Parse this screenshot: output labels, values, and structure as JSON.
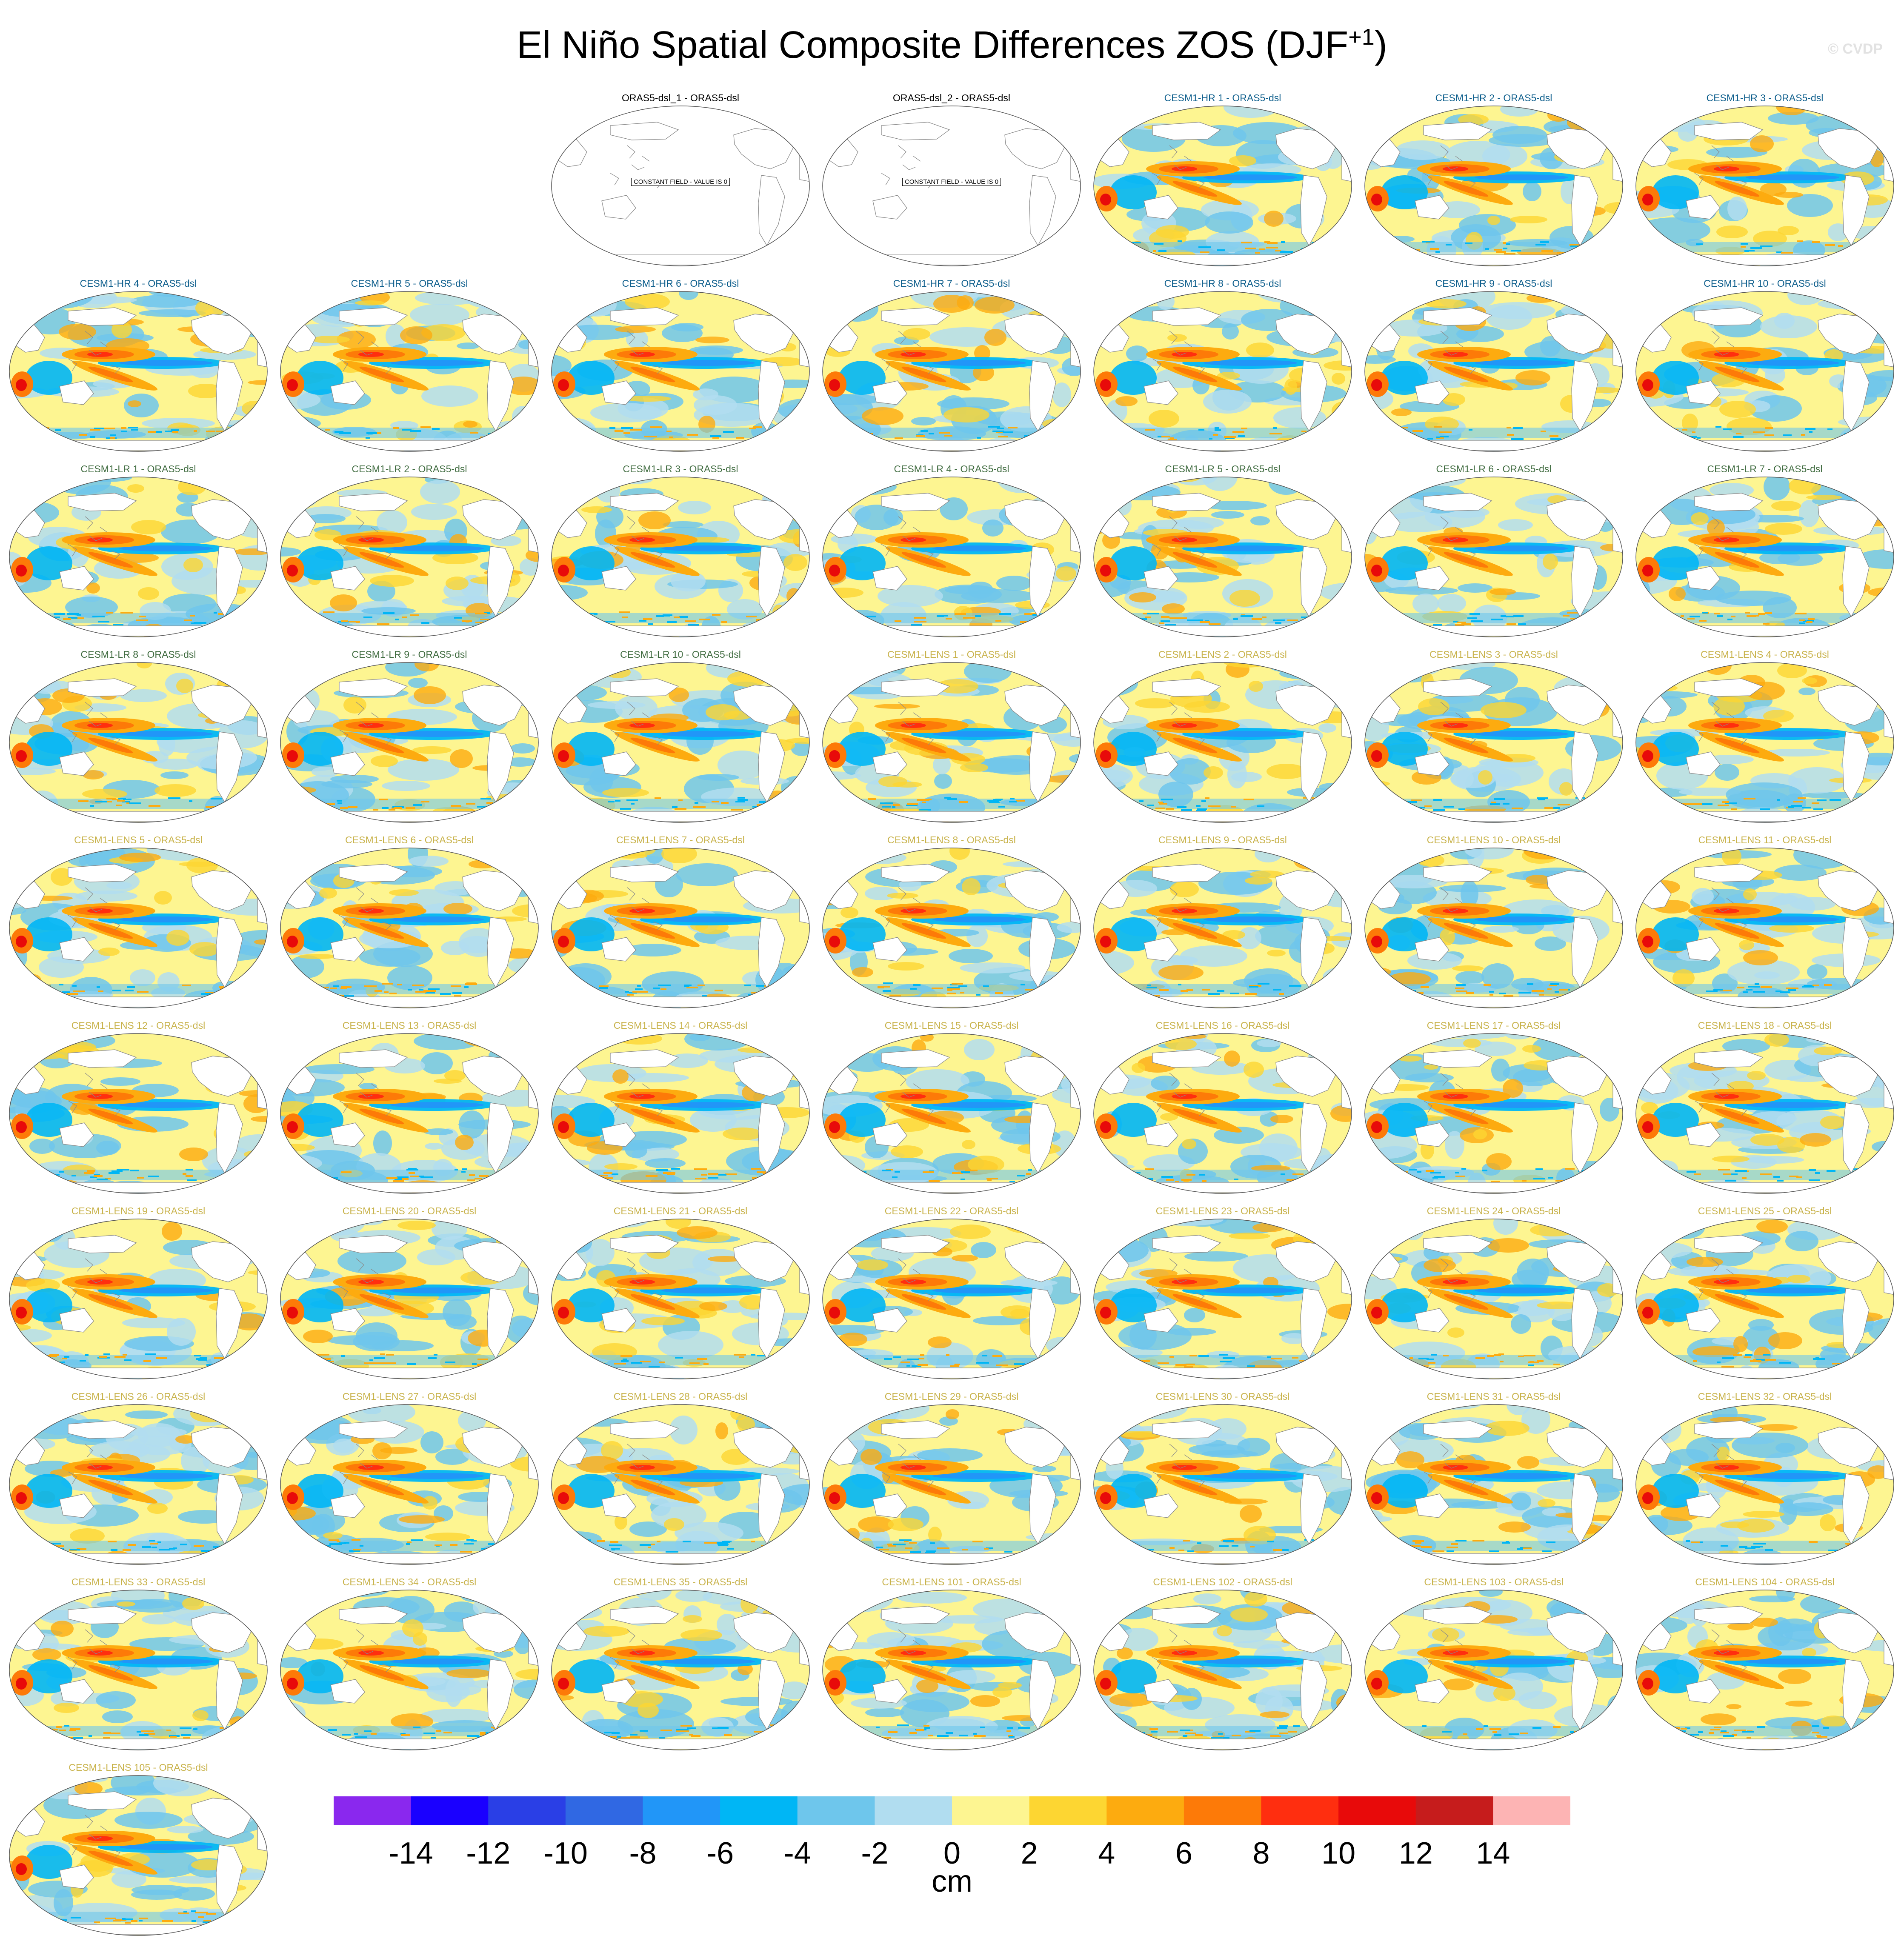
{
  "figure": {
    "title": "El Niño Spatial Composite Differences ZOS (DJF",
    "title_sup": "+1",
    "title_end": ")",
    "watermark": "© CVDP"
  },
  "colorbar": {
    "unit": "cm",
    "tick_labels": [
      "-14",
      "-12",
      "-10",
      "-8",
      "-6",
      "-4",
      "-2",
      "0",
      "2",
      "4",
      "6",
      "8",
      "10",
      "12",
      "14"
    ],
    "colors": [
      "#8a28ee",
      "#1a00ff",
      "#2a3fe6",
      "#3068e3",
      "#2196f8",
      "#00b6f5",
      "#6ec6ec",
      "#b1ddf0",
      "#fdf591",
      "#fdd632",
      "#fdab0f",
      "#fd7a08",
      "#ff2e0f",
      "#e80a0a",
      "#c61c1c",
      "#fdb4b4"
    ]
  },
  "panels": [
    {
      "title": "ORAS5-dsl_1 - ORAS5-dsl",
      "group": "obs",
      "note": "CONSTANT FIELD - VALUE IS 0"
    },
    {
      "title": "ORAS5-dsl_2 - ORAS5-dsl",
      "group": "obs",
      "note": "CONSTANT FIELD - VALUE IS 0"
    },
    {
      "title": "CESM1-HR 1 - ORAS5-dsl",
      "group": "hr"
    },
    {
      "title": "CESM1-HR 2 - ORAS5-dsl",
      "group": "hr"
    },
    {
      "title": "CESM1-HR 3 - ORAS5-dsl",
      "group": "hr"
    },
    {
      "title": "CESM1-HR 4 - ORAS5-dsl",
      "group": "hr"
    },
    {
      "title": "CESM1-HR 5 - ORAS5-dsl",
      "group": "hr"
    },
    {
      "title": "CESM1-HR 6 - ORAS5-dsl",
      "group": "hr"
    },
    {
      "title": "CESM1-HR 7 - ORAS5-dsl",
      "group": "hr"
    },
    {
      "title": "CESM1-HR 8 - ORAS5-dsl",
      "group": "hr"
    },
    {
      "title": "CESM1-HR 9 - ORAS5-dsl",
      "group": "hr"
    },
    {
      "title": "CESM1-HR 10 - ORAS5-dsl",
      "group": "hr"
    },
    {
      "title": "CESM1-LR 1 - ORAS5-dsl",
      "group": "lr"
    },
    {
      "title": "CESM1-LR 2 - ORAS5-dsl",
      "group": "lr"
    },
    {
      "title": "CESM1-LR 3 - ORAS5-dsl",
      "group": "lr"
    },
    {
      "title": "CESM1-LR 4 - ORAS5-dsl",
      "group": "lr"
    },
    {
      "title": "CESM1-LR 5 - ORAS5-dsl",
      "group": "lr"
    },
    {
      "title": "CESM1-LR 6 - ORAS5-dsl",
      "group": "lr"
    },
    {
      "title": "CESM1-LR 7 - ORAS5-dsl",
      "group": "lr"
    },
    {
      "title": "CESM1-LR 8 - ORAS5-dsl",
      "group": "lr"
    },
    {
      "title": "CESM1-LR 9 - ORAS5-dsl",
      "group": "lr"
    },
    {
      "title": "CESM1-LR 10 - ORAS5-dsl",
      "group": "lr"
    },
    {
      "title": "CESM1-LENS 1 - ORAS5-dsl",
      "group": "lens"
    },
    {
      "title": "CESM1-LENS 2 - ORAS5-dsl",
      "group": "lens"
    },
    {
      "title": "CESM1-LENS 3 - ORAS5-dsl",
      "group": "lens"
    },
    {
      "title": "CESM1-LENS 4 - ORAS5-dsl",
      "group": "lens"
    },
    {
      "title": "CESM1-LENS 5 - ORAS5-dsl",
      "group": "lens"
    },
    {
      "title": "CESM1-LENS 6 - ORAS5-dsl",
      "group": "lens"
    },
    {
      "title": "CESM1-LENS 7 - ORAS5-dsl",
      "group": "lens"
    },
    {
      "title": "CESM1-LENS 8 - ORAS5-dsl",
      "group": "lens"
    },
    {
      "title": "CESM1-LENS 9 - ORAS5-dsl",
      "group": "lens"
    },
    {
      "title": "CESM1-LENS 10 - ORAS5-dsl",
      "group": "lens"
    },
    {
      "title": "CESM1-LENS 11 - ORAS5-dsl",
      "group": "lens"
    },
    {
      "title": "CESM1-LENS 12 - ORAS5-dsl",
      "group": "lens"
    },
    {
      "title": "CESM1-LENS 13 - ORAS5-dsl",
      "group": "lens"
    },
    {
      "title": "CESM1-LENS 14 - ORAS5-dsl",
      "group": "lens"
    },
    {
      "title": "CESM1-LENS 15 - ORAS5-dsl",
      "group": "lens"
    },
    {
      "title": "CESM1-LENS 16 - ORAS5-dsl",
      "group": "lens"
    },
    {
      "title": "CESM1-LENS 17 - ORAS5-dsl",
      "group": "lens"
    },
    {
      "title": "CESM1-LENS 18 - ORAS5-dsl",
      "group": "lens"
    },
    {
      "title": "CESM1-LENS 19 - ORAS5-dsl",
      "group": "lens"
    },
    {
      "title": "CESM1-LENS 20 - ORAS5-dsl",
      "group": "lens"
    },
    {
      "title": "CESM1-LENS 21 - ORAS5-dsl",
      "group": "lens"
    },
    {
      "title": "CESM1-LENS 22 - ORAS5-dsl",
      "group": "lens"
    },
    {
      "title": "CESM1-LENS 23 - ORAS5-dsl",
      "group": "lens"
    },
    {
      "title": "CESM1-LENS 24 - ORAS5-dsl",
      "group": "lens"
    },
    {
      "title": "CESM1-LENS 25 - ORAS5-dsl",
      "group": "lens"
    },
    {
      "title": "CESM1-LENS 26 - ORAS5-dsl",
      "group": "lens"
    },
    {
      "title": "CESM1-LENS 27 - ORAS5-dsl",
      "group": "lens"
    },
    {
      "title": "CESM1-LENS 28 - ORAS5-dsl",
      "group": "lens"
    },
    {
      "title": "CESM1-LENS 29 - ORAS5-dsl",
      "group": "lens"
    },
    {
      "title": "CESM1-LENS 30 - ORAS5-dsl",
      "group": "lens"
    },
    {
      "title": "CESM1-LENS 31 - ORAS5-dsl",
      "group": "lens"
    },
    {
      "title": "CESM1-LENS 32 - ORAS5-dsl",
      "group": "lens"
    },
    {
      "title": "CESM1-LENS 33 - ORAS5-dsl",
      "group": "lens"
    },
    {
      "title": "CESM1-LENS 34 - ORAS5-dsl",
      "group": "lens"
    },
    {
      "title": "CESM1-LENS 35 - ORAS5-dsl",
      "group": "lens"
    },
    {
      "title": "CESM1-LENS 101 - ORAS5-dsl",
      "group": "lens"
    },
    {
      "title": "CESM1-LENS 102 - ORAS5-dsl",
      "group": "lens"
    },
    {
      "title": "CESM1-LENS 103 - ORAS5-dsl",
      "group": "lens"
    },
    {
      "title": "CESM1-LENS 104 - ORAS5-dsl",
      "group": "lens"
    },
    {
      "title": "CESM1-LENS 105 - ORAS5-dsl",
      "group": "lens"
    }
  ],
  "group_title_colors": {
    "obs": "#000000",
    "hr": "#0d5e8c",
    "lr": "#3f6b3f",
    "lens": "#c8b24a"
  }
}
